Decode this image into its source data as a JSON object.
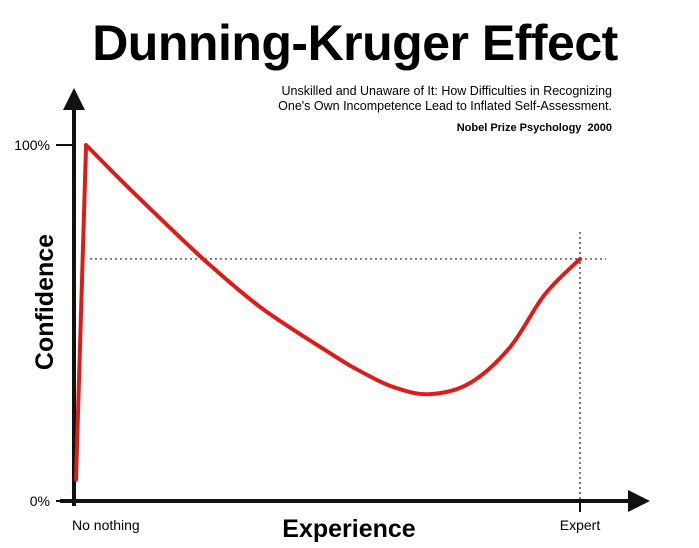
{
  "chart_data": {
    "type": "line",
    "title": "Dunning-Kruger Effect",
    "subtitle_lines": [
      "Unskilled and Unaware of It: How Difficulties in Recognizing",
      "One's Own Incompetence Lead to Inflated Self-Assessment."
    ],
    "annotation": "Nobel Prize Psychology  2000",
    "xlabel": "Experience",
    "ylabel": "Confidence",
    "x_tick_labels": [
      "No nothing",
      "Expert"
    ],
    "y_tick_labels": [
      "0%",
      "100%"
    ],
    "xlim": [
      0,
      100
    ],
    "ylim": [
      0,
      100
    ],
    "grid": false,
    "series": [
      {
        "color": "#dd1c1a",
        "x": [
          0,
          2,
          9,
          17,
          26,
          37,
          51,
          57,
          63,
          70,
          78,
          86,
          93,
          100
        ],
        "y": [
          6,
          100,
          90,
          79,
          67,
          54,
          41,
          36,
          32,
          30,
          33,
          43,
          58,
          68
        ]
      }
    ],
    "reference_lines": [
      {
        "orientation": "horizontal",
        "y": 68,
        "style": "dotted"
      },
      {
        "orientation": "vertical",
        "x": 100,
        "style": "dotted"
      }
    ]
  }
}
